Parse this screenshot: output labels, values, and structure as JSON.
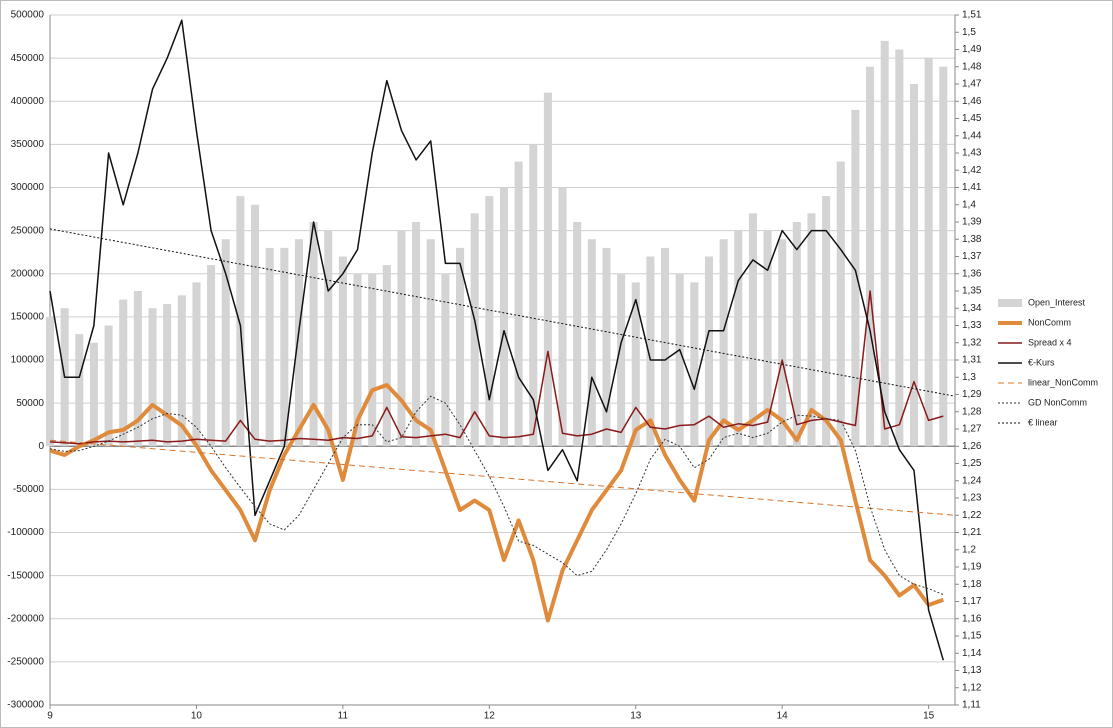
{
  "chart_data": {
    "type": "combo",
    "x": [
      9.0,
      9.1,
      9.2,
      9.3,
      9.4,
      9.5,
      9.6,
      9.7,
      9.8,
      9.9,
      10.0,
      10.1,
      10.2,
      10.3,
      10.4,
      10.5,
      10.6,
      10.7,
      10.8,
      10.9,
      11.0,
      11.1,
      11.2,
      11.3,
      11.4,
      11.5,
      11.6,
      11.7,
      11.8,
      11.9,
      12.0,
      12.1,
      12.2,
      12.3,
      12.4,
      12.5,
      12.6,
      12.7,
      12.8,
      12.9,
      13.0,
      13.1,
      13.2,
      13.3,
      13.4,
      13.5,
      13.6,
      13.7,
      13.8,
      13.9,
      14.0,
      14.1,
      14.2,
      14.3,
      14.4,
      14.5,
      14.6,
      14.7,
      14.8,
      14.9,
      15.0,
      15.1
    ],
    "xlim": [
      9,
      15.18
    ],
    "xticks": [
      9,
      10,
      11,
      12,
      13,
      14,
      15
    ],
    "ylim": [
      -300000,
      500000
    ],
    "yticks": [
      -300000,
      -250000,
      -200000,
      -150000,
      -100000,
      -50000,
      0,
      50000,
      100000,
      150000,
      200000,
      250000,
      300000,
      350000,
      400000,
      450000,
      500000
    ],
    "y2lim": [
      1.11,
      1.51
    ],
    "y2ticks": [
      {
        "value": 1.11,
        "label": "1,11"
      },
      {
        "value": 1.12,
        "label": "1,12"
      },
      {
        "value": 1.13,
        "label": "1,13"
      },
      {
        "value": 1.14,
        "label": "1,14"
      },
      {
        "value": 1.15,
        "label": "1,15"
      },
      {
        "value": 1.16,
        "label": "1,16"
      },
      {
        "value": 1.17,
        "label": "1,17"
      },
      {
        "value": 1.18,
        "label": "1,18"
      },
      {
        "value": 1.19,
        "label": "1,19"
      },
      {
        "value": 1.2,
        "label": "1,2"
      },
      {
        "value": 1.21,
        "label": "1,21"
      },
      {
        "value": 1.22,
        "label": "1,22"
      },
      {
        "value": 1.23,
        "label": "1,23"
      },
      {
        "value": 1.24,
        "label": "1,24"
      },
      {
        "value": 1.25,
        "label": "1,25"
      },
      {
        "value": 1.26,
        "label": "1,26"
      },
      {
        "value": 1.27,
        "label": "1,27"
      },
      {
        "value": 1.28,
        "label": "1,28"
      },
      {
        "value": 1.29,
        "label": "1,29"
      },
      {
        "value": 1.3,
        "label": "1,3"
      },
      {
        "value": 1.31,
        "label": "1,31"
      },
      {
        "value": 1.32,
        "label": "1,32"
      },
      {
        "value": 1.33,
        "label": "1,33"
      },
      {
        "value": 1.34,
        "label": "1,34"
      },
      {
        "value": 1.35,
        "label": "1,35"
      },
      {
        "value": 1.36,
        "label": "1,36"
      },
      {
        "value": 1.37,
        "label": "1,37"
      },
      {
        "value": 1.38,
        "label": "1,38"
      },
      {
        "value": 1.39,
        "label": "1,39"
      },
      {
        "value": 1.4,
        "label": "1,4"
      },
      {
        "value": 1.41,
        "label": "1,41"
      },
      {
        "value": 1.42,
        "label": "1,42"
      },
      {
        "value": 1.43,
        "label": "1,43"
      },
      {
        "value": 1.44,
        "label": "1,44"
      },
      {
        "value": 1.45,
        "label": "1,45"
      },
      {
        "value": 1.46,
        "label": "1,46"
      },
      {
        "value": 1.47,
        "label": "1,47"
      },
      {
        "value": 1.48,
        "label": "1,48"
      },
      {
        "value": 1.49,
        "label": "1,49"
      },
      {
        "value": 1.5,
        "label": "1,5"
      },
      {
        "value": 1.51,
        "label": "1,51"
      }
    ],
    "grid": true,
    "legend": "right",
    "series": [
      {
        "name": "Open_Interest",
        "type": "bar",
        "color": "#d4d4d4",
        "values": [
          150000,
          160000,
          130000,
          120000,
          140000,
          170000,
          180000,
          160000,
          165000,
          175000,
          190000,
          210000,
          240000,
          290000,
          280000,
          230000,
          230000,
          240000,
          260000,
          250000,
          220000,
          200000,
          200000,
          210000,
          250000,
          260000,
          240000,
          200000,
          230000,
          270000,
          290000,
          300000,
          330000,
          350000,
          410000,
          300000,
          260000,
          240000,
          230000,
          200000,
          190000,
          220000,
          230000,
          200000,
          190000,
          220000,
          240000,
          250000,
          270000,
          250000,
          240000,
          260000,
          270000,
          290000,
          330000,
          390000,
          440000,
          470000,
          460000,
          420000,
          450000,
          440000
        ]
      },
      {
        "name": "NonComm",
        "type": "line",
        "color": "#e08a3c",
        "line_width": 4,
        "values": [
          -5000,
          -10000,
          0,
          7000,
          16000,
          19000,
          30000,
          48000,
          36000,
          24000,
          1000,
          -28000,
          -51000,
          -74000,
          -109000,
          -51000,
          -10000,
          19000,
          48000,
          19000,
          -39000,
          30000,
          65000,
          71000,
          53000,
          30000,
          19000,
          -28000,
          -74000,
          -63000,
          -74000,
          -132000,
          -86000,
          -132000,
          -202000,
          -144000,
          -109000,
          -74000,
          -51000,
          -28000,
          19000,
          30000,
          -10000,
          -39000,
          -63000,
          7000,
          30000,
          19000,
          30000,
          42000,
          30000,
          7000,
          42000,
          30000,
          7000,
          -63000,
          -132000,
          -150000,
          -173000,
          -161000,
          -184000,
          -178000
        ]
      },
      {
        "name": "Spread x 4",
        "type": "line",
        "color": "#8b1a1a",
        "line_width": 1.5,
        "values": [
          5000,
          4000,
          3000,
          5000,
          6000,
          5000,
          6000,
          7000,
          5000,
          6000,
          8000,
          7000,
          6000,
          30000,
          8000,
          6000,
          7000,
          9000,
          8000,
          7000,
          10000,
          9000,
          12000,
          45000,
          11000,
          10000,
          12000,
          14000,
          10000,
          40000,
          12000,
          10000,
          11000,
          14000,
          110000,
          15000,
          12000,
          14000,
          20000,
          16000,
          45000,
          22000,
          20000,
          24000,
          25000,
          35000,
          22000,
          26000,
          24000,
          28000,
          100000,
          25000,
          30000,
          32000,
          28000,
          24000,
          180000,
          20000,
          25000,
          75000,
          30000,
          35000
        ]
      },
      {
        "name": "€-Kurs",
        "type": "line",
        "axis": "y2",
        "color": "#111111",
        "line_width": 1.5,
        "values": [
          1.35,
          1.3,
          1.3,
          1.33,
          1.43,
          1.4,
          1.43,
          1.467,
          1.485,
          1.507,
          1.443,
          1.385,
          1.36,
          1.33,
          1.22,
          1.24,
          1.26,
          1.327,
          1.39,
          1.35,
          1.36,
          1.374,
          1.43,
          1.472,
          1.443,
          1.426,
          1.437,
          1.366,
          1.366,
          1.333,
          1.287,
          1.327,
          1.3,
          1.287,
          1.246,
          1.258,
          1.24,
          1.3,
          1.28,
          1.32,
          1.345,
          1.31,
          1.31,
          1.316,
          1.293,
          1.327,
          1.327,
          1.356,
          1.368,
          1.362,
          1.385,
          1.374,
          1.385,
          1.385,
          1.374,
          1.362,
          1.327,
          1.28,
          1.258,
          1.246,
          1.165,
          1.136
        ]
      },
      {
        "name": "linear_NonComm",
        "type": "line",
        "color": "#d9742a",
        "dash": "dashed",
        "line_width": 1,
        "x": [
          9,
          15.18
        ],
        "values": [
          7000,
          -80000
        ]
      },
      {
        "name": "GD NonComm",
        "type": "line",
        "color": "#333333",
        "dash": "dotted",
        "line_width": 1,
        "values": [
          -3000,
          -6000,
          -5000,
          0,
          6000,
          14000,
          22000,
          32000,
          38000,
          36000,
          22000,
          0,
          -25000,
          -48000,
          -70000,
          -90000,
          -97000,
          -80000,
          -50000,
          -20000,
          10000,
          25000,
          25000,
          5000,
          10000,
          40000,
          58000,
          50000,
          25000,
          -5000,
          -35000,
          -70000,
          -110000,
          -115000,
          -125000,
          -135000,
          -150000,
          -145000,
          -120000,
          -90000,
          -55000,
          -15000,
          8000,
          0,
          -25000,
          -15000,
          10000,
          15000,
          10000,
          15000,
          28000,
          36000,
          35000,
          32000,
          30000,
          -5000,
          -70000,
          -120000,
          -150000,
          -160000,
          -165000,
          -172000
        ]
      },
      {
        "name": "€ linear",
        "type": "line",
        "axis": "y2",
        "color": "#111111",
        "dash": "dotted",
        "line_width": 1,
        "x": [
          9,
          15.18
        ],
        "values": [
          1.386,
          1.289
        ]
      }
    ]
  }
}
